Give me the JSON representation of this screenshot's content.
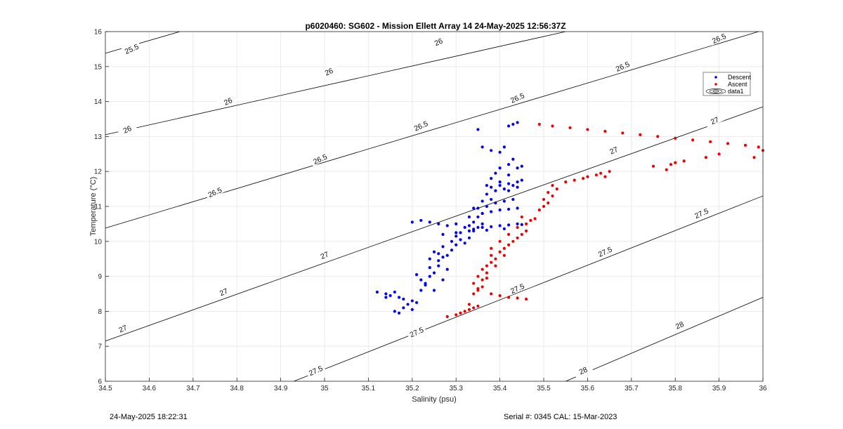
{
  "chart_data": {
    "type": "scatter",
    "title": "p6020460: SG602 - Mission Ellett Array 14 24-May-2025 12:56:37Z",
    "xlabel": "Salinity (psu)",
    "ylabel": "Temperature (°C)",
    "xlim": [
      34.5,
      36
    ],
    "ylim": [
      6,
      16
    ],
    "xticks": [
      "34.5",
      "34.6",
      "34.7",
      "34.8",
      "34.9",
      "35",
      "35.1",
      "35.2",
      "35.3",
      "35.4",
      "35.5",
      "35.6",
      "35.7",
      "35.8",
      "35.9",
      "36"
    ],
    "yticks": [
      "6",
      "7",
      "8",
      "9",
      "10",
      "11",
      "12",
      "13",
      "14",
      "15",
      "16"
    ],
    "grid": true,
    "legend_position": "top-right",
    "legend": [
      "Descent",
      "Ascent",
      "data1"
    ],
    "contours": {
      "name": "data1",
      "color": "#000000",
      "levels": [
        25.5,
        26,
        26.5,
        27,
        27.5,
        28
      ],
      "labels": [
        {
          "text": "25.5",
          "x": 34.56,
          "y": 15.5
        },
        {
          "text": "26",
          "x": 34.55,
          "y": 13.2
        },
        {
          "text": "26",
          "x": 34.78,
          "y": 14.0
        },
        {
          "text": "26",
          "x": 35.01,
          "y": 14.85
        },
        {
          "text": "26",
          "x": 35.26,
          "y": 15.7
        },
        {
          "text": "26.5",
          "x": 34.75,
          "y": 11.4
        },
        {
          "text": "26.5",
          "x": 34.99,
          "y": 12.35
        },
        {
          "text": "26.5",
          "x": 35.22,
          "y": 13.3
        },
        {
          "text": "26.5",
          "x": 35.44,
          "y": 14.1
        },
        {
          "text": "26.5",
          "x": 35.68,
          "y": 15.0
        },
        {
          "text": "26.5",
          "x": 35.9,
          "y": 15.8
        },
        {
          "text": "27",
          "x": 34.54,
          "y": 7.5
        },
        {
          "text": "27",
          "x": 34.77,
          "y": 8.55
        },
        {
          "text": "27",
          "x": 35.0,
          "y": 9.6
        },
        {
          "text": "27",
          "x": 35.66,
          "y": 12.6
        },
        {
          "text": "27",
          "x": 35.89,
          "y": 13.45
        },
        {
          "text": "27.5",
          "x": 34.98,
          "y": 6.3
        },
        {
          "text": "27.5",
          "x": 35.21,
          "y": 7.4
        },
        {
          "text": "27.5",
          "x": 35.44,
          "y": 8.65
        },
        {
          "text": "27.5",
          "x": 35.64,
          "y": 9.7
        },
        {
          "text": "27.5",
          "x": 35.86,
          "y": 10.8
        },
        {
          "text": "28",
          "x": 35.59,
          "y": 6.3
        },
        {
          "text": "28",
          "x": 35.81,
          "y": 7.6
        }
      ]
    },
    "series": [
      {
        "name": "Descent",
        "color": "#0000ee",
        "points": [
          [
            35.16,
            8.0
          ],
          [
            35.17,
            7.95
          ],
          [
            35.18,
            8.1
          ],
          [
            35.19,
            8.2
          ],
          [
            35.2,
            8.05
          ],
          [
            35.2,
            8.3
          ],
          [
            35.21,
            8.25
          ],
          [
            35.18,
            8.35
          ],
          [
            35.15,
            8.45
          ],
          [
            35.14,
            8.5
          ],
          [
            35.16,
            8.55
          ],
          [
            35.17,
            8.4
          ],
          [
            35.22,
            8.6
          ],
          [
            35.23,
            8.75
          ],
          [
            35.22,
            8.9
          ],
          [
            35.24,
            9.0
          ],
          [
            35.23,
            8.8
          ],
          [
            35.25,
            9.1
          ],
          [
            35.24,
            9.25
          ],
          [
            35.21,
            9.05
          ],
          [
            35.26,
            9.3
          ],
          [
            35.26,
            9.45
          ],
          [
            35.27,
            9.55
          ],
          [
            35.26,
            9.65
          ],
          [
            35.28,
            9.6
          ],
          [
            35.29,
            9.75
          ],
          [
            35.27,
            9.85
          ],
          [
            35.3,
            9.9
          ],
          [
            35.29,
            10.0
          ],
          [
            35.31,
            10.05
          ],
          [
            35.3,
            10.15
          ],
          [
            35.32,
            9.95
          ],
          [
            35.33,
            10.1
          ],
          [
            35.31,
            10.25
          ],
          [
            35.34,
            10.3
          ],
          [
            35.33,
            10.45
          ],
          [
            35.35,
            10.4
          ],
          [
            35.36,
            10.5
          ],
          [
            35.34,
            10.55
          ],
          [
            35.35,
            10.7
          ],
          [
            35.36,
            10.8
          ],
          [
            35.35,
            10.95
          ],
          [
            35.37,
            11.0
          ],
          [
            35.36,
            11.15
          ],
          [
            35.38,
            11.2
          ],
          [
            35.37,
            11.35
          ],
          [
            35.39,
            11.45
          ],
          [
            35.38,
            11.55
          ],
          [
            35.4,
            11.6
          ],
          [
            35.41,
            11.5
          ],
          [
            35.42,
            11.65
          ],
          [
            35.43,
            11.6
          ],
          [
            35.44,
            11.7
          ],
          [
            35.42,
            11.45
          ],
          [
            35.45,
            11.75
          ],
          [
            35.44,
            11.55
          ],
          [
            35.4,
            11.7
          ],
          [
            35.37,
            11.6
          ],
          [
            35.2,
            10.55
          ],
          [
            35.22,
            10.6
          ],
          [
            35.24,
            10.55
          ],
          [
            35.26,
            10.5
          ],
          [
            35.28,
            10.45
          ],
          [
            35.3,
            10.5
          ],
          [
            35.32,
            10.4
          ],
          [
            35.34,
            10.35
          ],
          [
            35.36,
            10.4
          ],
          [
            35.38,
            10.42
          ],
          [
            35.4,
            10.45
          ],
          [
            35.42,
            10.47
          ],
          [
            35.44,
            10.5
          ],
          [
            35.45,
            10.48
          ],
          [
            35.27,
            10.2
          ],
          [
            35.3,
            10.25
          ],
          [
            35.33,
            10.3
          ],
          [
            35.37,
            10.32
          ],
          [
            35.41,
            10.36
          ],
          [
            35.36,
            10.8
          ],
          [
            35.38,
            10.85
          ],
          [
            35.4,
            10.9
          ],
          [
            35.42,
            10.92
          ],
          [
            35.44,
            10.95
          ],
          [
            35.39,
            11.1
          ],
          [
            35.41,
            11.15
          ],
          [
            35.43,
            11.2
          ],
          [
            35.38,
            11.8
          ],
          [
            35.39,
            11.95
          ],
          [
            35.4,
            12.1
          ],
          [
            35.42,
            12.2
          ],
          [
            35.43,
            12.35
          ],
          [
            35.42,
            11.9
          ],
          [
            35.44,
            12.1
          ],
          [
            35.45,
            12.15
          ],
          [
            35.36,
            12.7
          ],
          [
            35.38,
            12.6
          ],
          [
            35.41,
            12.7
          ],
          [
            35.4,
            12.55
          ],
          [
            35.35,
            13.2
          ],
          [
            35.42,
            13.3
          ],
          [
            35.43,
            13.35
          ],
          [
            35.44,
            13.4
          ],
          [
            35.12,
            8.55
          ],
          [
            35.14,
            8.4
          ],
          [
            35.25,
            8.6
          ],
          [
            35.27,
            8.9
          ],
          [
            35.28,
            9.2
          ],
          [
            35.25,
            9.7
          ],
          [
            35.24,
            9.5
          ],
          [
            35.33,
            10.7
          ],
          [
            35.34,
            10.95
          ]
        ]
      },
      {
        "name": "Ascent",
        "color": "#ee0000",
        "points": [
          [
            35.28,
            7.85
          ],
          [
            35.3,
            7.9
          ],
          [
            35.31,
            7.95
          ],
          [
            35.32,
            8.0
          ],
          [
            35.33,
            8.05
          ],
          [
            35.34,
            8.1
          ],
          [
            35.35,
            8.15
          ],
          [
            35.33,
            8.2
          ],
          [
            35.34,
            8.5
          ],
          [
            35.35,
            8.6
          ],
          [
            35.36,
            8.7
          ],
          [
            35.34,
            8.8
          ],
          [
            35.36,
            8.9
          ],
          [
            35.35,
            9.0
          ],
          [
            35.37,
            9.1
          ],
          [
            35.36,
            9.2
          ],
          [
            35.37,
            9.3
          ],
          [
            35.38,
            9.4
          ],
          [
            35.39,
            9.5
          ],
          [
            35.38,
            9.6
          ],
          [
            35.4,
            9.7
          ],
          [
            35.41,
            9.8
          ],
          [
            35.42,
            9.9
          ],
          [
            35.43,
            10.0
          ],
          [
            35.44,
            10.1
          ],
          [
            35.45,
            10.2
          ],
          [
            35.46,
            10.3
          ],
          [
            35.44,
            10.4
          ],
          [
            35.46,
            10.5
          ],
          [
            35.47,
            10.6
          ],
          [
            35.45,
            10.7
          ],
          [
            35.48,
            10.65
          ],
          [
            35.49,
            10.9
          ],
          [
            35.5,
            11.0
          ],
          [
            35.51,
            11.1
          ],
          [
            35.5,
            11.2
          ],
          [
            35.52,
            11.3
          ],
          [
            35.51,
            11.4
          ],
          [
            35.53,
            11.5
          ],
          [
            35.52,
            11.6
          ],
          [
            35.55,
            11.7
          ],
          [
            35.57,
            11.75
          ],
          [
            35.59,
            11.8
          ],
          [
            35.6,
            11.85
          ],
          [
            35.62,
            11.9
          ],
          [
            35.63,
            11.95
          ],
          [
            35.64,
            11.85
          ],
          [
            35.65,
            12.0
          ],
          [
            35.38,
            9.8
          ],
          [
            35.4,
            10.0
          ],
          [
            35.42,
            10.2
          ],
          [
            35.41,
            9.6
          ],
          [
            35.39,
            9.3
          ],
          [
            35.37,
            8.95
          ],
          [
            35.35,
            8.65
          ],
          [
            35.38,
            8.5
          ],
          [
            35.4,
            8.45
          ],
          [
            35.42,
            8.4
          ],
          [
            35.44,
            8.38
          ],
          [
            35.46,
            8.35
          ],
          [
            35.49,
            13.35
          ],
          [
            35.52,
            13.3
          ],
          [
            35.56,
            13.25
          ],
          [
            35.6,
            13.2
          ],
          [
            35.64,
            13.15
          ],
          [
            35.68,
            13.1
          ],
          [
            35.72,
            13.05
          ],
          [
            35.76,
            13.0
          ],
          [
            35.8,
            12.95
          ],
          [
            35.84,
            12.9
          ],
          [
            35.88,
            12.85
          ],
          [
            35.92,
            12.8
          ],
          [
            35.96,
            12.75
          ],
          [
            35.99,
            12.7
          ],
          [
            36.0,
            12.6
          ],
          [
            35.98,
            12.4
          ],
          [
            35.75,
            12.15
          ],
          [
            35.78,
            12.05
          ],
          [
            35.8,
            12.25
          ],
          [
            35.82,
            12.3
          ],
          [
            35.79,
            12.2
          ],
          [
            35.87,
            12.4
          ],
          [
            35.9,
            12.5
          ]
        ]
      }
    ]
  },
  "footer": {
    "left_timestamp": "24-May-2025 18:22:31",
    "right_info": "Serial #: 0345  CAL: 15-Mar-2023"
  }
}
